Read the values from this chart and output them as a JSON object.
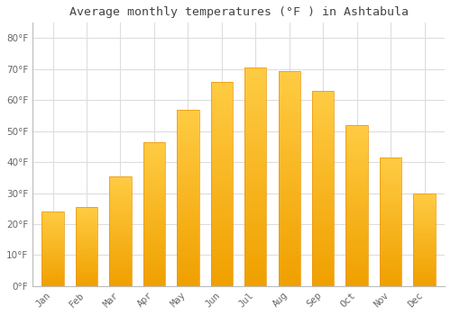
{
  "title": "Average monthly temperatures (°F ) in Ashtabula",
  "months": [
    "Jan",
    "Feb",
    "Mar",
    "Apr",
    "May",
    "Jun",
    "Jul",
    "Aug",
    "Sep",
    "Oct",
    "Nov",
    "Dec"
  ],
  "values": [
    24,
    25.5,
    35.5,
    46.5,
    57,
    66,
    70.5,
    69.5,
    63,
    52,
    41.5,
    30
  ],
  "bar_color_top": "#FFCC44",
  "bar_color_bottom": "#F0A000",
  "background_color": "#FFFFFF",
  "grid_color": "#DDDDDD",
  "title_fontsize": 9.5,
  "tick_label_color": "#666666",
  "title_color": "#444444",
  "ylim": [
    0,
    85
  ],
  "yticks": [
    0,
    10,
    20,
    30,
    40,
    50,
    60,
    70,
    80
  ]
}
